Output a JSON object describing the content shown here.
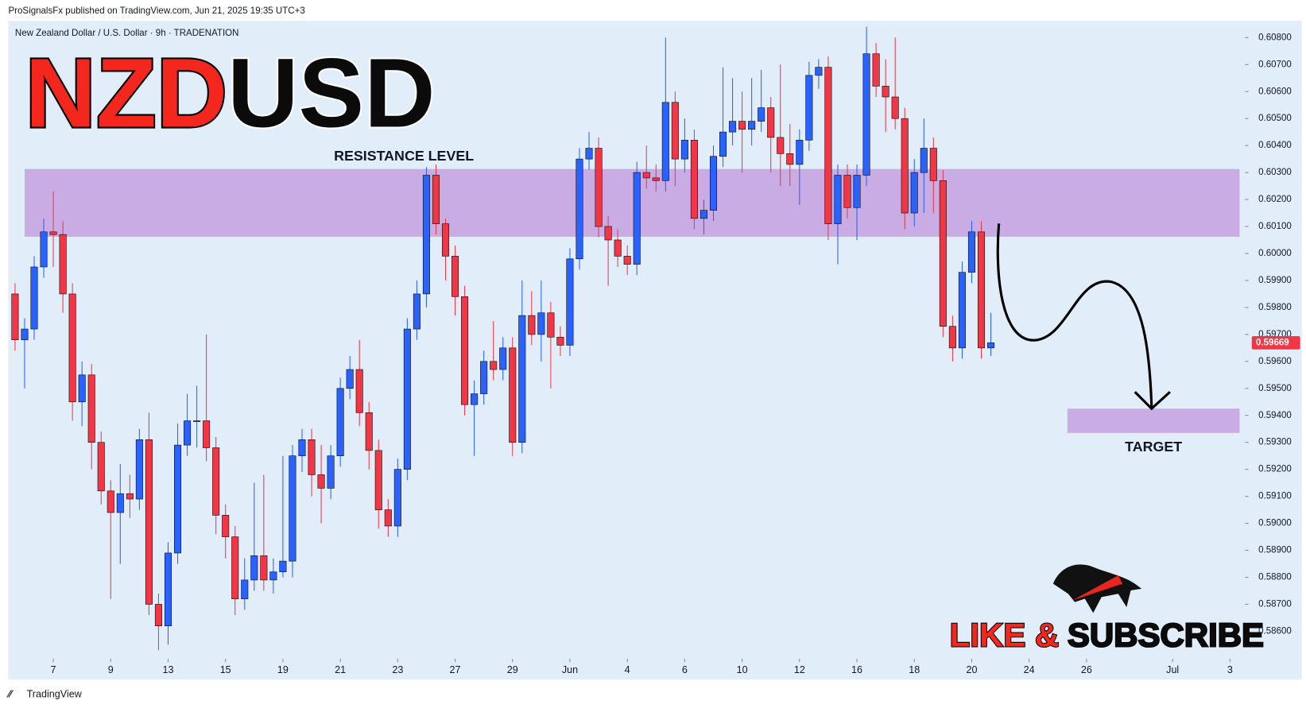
{
  "header": "ProSignalsFx published on TradingView.com, Jun 21, 2025 19:35 UTC+3",
  "footer": "TradingView",
  "chart_data": {
    "type": "candlestick",
    "subtitle": "New Zealand Dollar / U.S. Dollar · 9h · TRADENATION",
    "title_parts": [
      "NZD",
      "USD"
    ],
    "up_color": "#2962ff",
    "down_color": "#f23645",
    "open": [
      0.5985,
      0.5968,
      0.5972,
      0.5995,
      0.6008,
      0.6007,
      0.5985,
      0.5945,
      0.5955,
      0.593,
      0.5912,
      0.5904,
      0.5911,
      0.5909,
      0.5931,
      0.587,
      0.5862,
      0.5889,
      0.5929,
      0.5938,
      0.5938,
      0.5928,
      0.5903,
      0.5895,
      0.5872,
      0.5879,
      0.5888,
      0.5879,
      0.5882,
      0.5886,
      0.5925,
      0.5931,
      0.5918,
      0.5913,
      0.5925,
      0.595,
      0.5957,
      0.5941,
      0.5927,
      0.5905,
      0.5899,
      0.592,
      0.5972,
      0.5985,
      0.6029,
      0.6011,
      0.5999,
      0.5984,
      0.5944,
      0.5948,
      0.596,
      0.5957,
      0.5965,
      0.593,
      0.5977,
      0.597,
      0.5978,
      0.5969,
      0.5966,
      0.5998,
      0.6035,
      0.6039,
      0.601,
      0.6005,
      0.5999,
      0.5996,
      0.603,
      0.6028,
      0.6027,
      0.6056,
      0.6035,
      0.6042,
      0.6013,
      0.6016,
      0.6036,
      0.6045,
      0.6049,
      0.6046,
      0.6049,
      0.6054,
      0.6043,
      0.6037,
      0.6033,
      0.6042,
      0.6066,
      0.6069,
      0.6011,
      0.6029,
      0.6017,
      0.6029,
      0.6074,
      0.6062,
      0.6058,
      0.605,
      0.6015,
      0.603,
      0.6039,
      0.6027,
      0.5973,
      0.5965,
      0.5993,
      0.6008,
      0.5965
    ],
    "high": [
      0.5989,
      0.5976,
      0.5999,
      0.6013,
      0.6023,
      0.6012,
      0.5989,
      0.596,
      0.5959,
      0.5934,
      0.5916,
      0.5922,
      0.5918,
      0.5935,
      0.5941,
      0.5874,
      0.5893,
      0.5937,
      0.5948,
      0.5951,
      0.597,
      0.5932,
      0.5907,
      0.5899,
      0.5887,
      0.5915,
      0.5918,
      0.5887,
      0.5925,
      0.5929,
      0.5935,
      0.5935,
      0.5929,
      0.5929,
      0.5954,
      0.5962,
      0.5968,
      0.5945,
      0.5931,
      0.5909,
      0.5924,
      0.5976,
      0.599,
      0.6032,
      0.6033,
      0.6013,
      0.6003,
      0.5988,
      0.5953,
      0.5964,
      0.5975,
      0.5969,
      0.5969,
      0.599,
      0.5986,
      0.599,
      0.5982,
      0.5973,
      0.6002,
      0.6039,
      0.6045,
      0.6043,
      0.6014,
      0.6009,
      0.6003,
      0.6034,
      0.604,
      0.6033,
      0.608,
      0.606,
      0.605,
      0.6046,
      0.602,
      0.604,
      0.6069,
      0.6065,
      0.606,
      0.6065,
      0.6068,
      0.6058,
      0.607,
      0.6048,
      0.6046,
      0.6071,
      0.6072,
      0.6073,
      0.6033,
      0.6033,
      0.6033,
      0.6084,
      0.6078,
      0.6072,
      0.608,
      0.6054,
      0.6035,
      0.605,
      0.6043,
      0.6031,
      0.5977,
      0.5997,
      0.6012,
      0.6012,
      0.5978
    ],
    "low": [
      0.5964,
      0.595,
      0.5968,
      0.5991,
      0.5995,
      0.5978,
      0.5938,
      0.5936,
      0.592,
      0.5907,
      0.5872,
      0.5885,
      0.5902,
      0.5905,
      0.5866,
      0.5853,
      0.5855,
      0.5885,
      0.5925,
      0.5928,
      0.5923,
      0.5896,
      0.5887,
      0.5866,
      0.5868,
      0.5875,
      0.5875,
      0.5874,
      0.588,
      0.588,
      0.5919,
      0.591,
      0.59,
      0.5909,
      0.5921,
      0.5946,
      0.5936,
      0.592,
      0.5898,
      0.5895,
      0.5895,
      0.5916,
      0.5968,
      0.598,
      0.6007,
      0.599,
      0.5977,
      0.594,
      0.5925,
      0.5944,
      0.5953,
      0.5953,
      0.5925,
      0.5926,
      0.5966,
      0.596,
      0.595,
      0.5962,
      0.5962,
      0.5994,
      0.6031,
      0.6006,
      0.5988,
      0.5995,
      0.5992,
      0.5992,
      0.6024,
      0.6023,
      0.6023,
      0.6025,
      0.603,
      0.6009,
      0.6007,
      0.6012,
      0.6032,
      0.604,
      0.603,
      0.604,
      0.6045,
      0.603,
      0.6025,
      0.6025,
      0.6018,
      0.6038,
      0.6061,
      0.6005,
      0.5996,
      0.6013,
      0.6005,
      0.6025,
      0.6058,
      0.6045,
      0.6046,
      0.6009,
      0.601,
      0.6015,
      0.6015,
      0.5969,
      0.596,
      0.5961,
      0.5989,
      0.5961,
      0.5962
    ],
    "close": [
      0.5968,
      0.5972,
      0.5995,
      0.6008,
      0.6007,
      0.5985,
      0.5945,
      0.5955,
      0.593,
      0.5912,
      0.5904,
      0.5911,
      0.5909,
      0.5931,
      0.587,
      0.5862,
      0.5889,
      0.5929,
      0.5938,
      0.5938,
      0.5928,
      0.5903,
      0.5895,
      0.5872,
      0.5879,
      0.5888,
      0.5879,
      0.5882,
      0.5886,
      0.5925,
      0.5931,
      0.5918,
      0.5913,
      0.5925,
      0.595,
      0.5957,
      0.5941,
      0.5927,
      0.5905,
      0.5899,
      0.592,
      0.5972,
      0.5985,
      0.6029,
      0.6011,
      0.5999,
      0.5984,
      0.5944,
      0.5948,
      0.596,
      0.5957,
      0.5965,
      0.593,
      0.5977,
      0.597,
      0.5978,
      0.5969,
      0.5966,
      0.5998,
      0.6035,
      0.6039,
      0.601,
      0.6005,
      0.5999,
      0.5996,
      0.603,
      0.6028,
      0.6027,
      0.6056,
      0.6035,
      0.6042,
      0.6013,
      0.6016,
      0.6036,
      0.6045,
      0.6049,
      0.6046,
      0.6049,
      0.6054,
      0.6043,
      0.6037,
      0.6033,
      0.6042,
      0.6066,
      0.6069,
      0.6011,
      0.6029,
      0.6017,
      0.6029,
      0.6074,
      0.6062,
      0.6058,
      0.605,
      0.6015,
      0.603,
      0.6039,
      0.6027,
      0.5973,
      0.5965,
      0.5993,
      0.6008,
      0.5965,
      0.59669
    ],
    "xlim": [
      -0.7,
      128.4
    ],
    "xticks": [
      {
        "value": 4,
        "label": "7"
      },
      {
        "value": 10,
        "label": "9"
      },
      {
        "value": 16,
        "label": "13"
      },
      {
        "value": 22,
        "label": "15"
      },
      {
        "value": 28,
        "label": "19"
      },
      {
        "value": 34,
        "label": "21"
      },
      {
        "value": 40,
        "label": "23"
      },
      {
        "value": 46,
        "label": "27"
      },
      {
        "value": 52,
        "label": "29"
      },
      {
        "value": 58,
        "label": "Jun"
      },
      {
        "value": 64,
        "label": "4"
      },
      {
        "value": 70,
        "label": "6"
      },
      {
        "value": 76,
        "label": "10"
      },
      {
        "value": 82,
        "label": "12"
      },
      {
        "value": 88,
        "label": "16"
      },
      {
        "value": 94,
        "label": "18"
      },
      {
        "value": 100,
        "label": "20"
      },
      {
        "value": 106,
        "label": "24"
      },
      {
        "value": 112,
        "label": "26"
      },
      {
        "value": 121,
        "label": "Jul"
      },
      {
        "value": 127,
        "label": "3"
      }
    ],
    "ylim": [
      0.58498,
      0.60862
    ],
    "yticks": [
      {
        "value": 0.608,
        "label": "0.60800"
      },
      {
        "value": 0.607,
        "label": "0.60700"
      },
      {
        "value": 0.606,
        "label": "0.60600"
      },
      {
        "value": 0.605,
        "label": "0.60500"
      },
      {
        "value": 0.604,
        "label": "0.60400"
      },
      {
        "value": 0.603,
        "label": "0.60300"
      },
      {
        "value": 0.602,
        "label": "0.60200"
      },
      {
        "value": 0.601,
        "label": "0.60100"
      },
      {
        "value": 0.6,
        "label": "0.60000"
      },
      {
        "value": 0.599,
        "label": "0.59900"
      },
      {
        "value": 0.598,
        "label": "0.59800"
      },
      {
        "value": 0.597,
        "label": "0.59700"
      },
      {
        "value": 0.596,
        "label": "0.59600"
      },
      {
        "value": 0.595,
        "label": "0.59500"
      },
      {
        "value": 0.594,
        "label": "0.59400"
      },
      {
        "value": 0.593,
        "label": "0.59300"
      },
      {
        "value": 0.592,
        "label": "0.59200"
      },
      {
        "value": 0.591,
        "label": "0.59100"
      },
      {
        "value": 0.59,
        "label": "0.59000"
      },
      {
        "value": 0.589,
        "label": "0.58900"
      },
      {
        "value": 0.588,
        "label": "0.58800"
      },
      {
        "value": 0.587,
        "label": "0.58700"
      },
      {
        "value": 0.586,
        "label": "0.58600"
      }
    ],
    "zones": [
      {
        "label": "RESISTANCE LEVEL",
        "price_range": [
          0.60062,
          0.60313
        ],
        "x_range": [
          1,
          128
        ],
        "color": "#c7a8e2"
      },
      {
        "label": "TARGET",
        "price_range": [
          0.59335,
          0.59425
        ],
        "x_range": [
          110,
          128
        ],
        "color": "#c7a8e2"
      }
    ],
    "last_price_color": "#f23645",
    "cta_parts": [
      "LIKE &",
      "SUBSCRIBE"
    ]
  }
}
